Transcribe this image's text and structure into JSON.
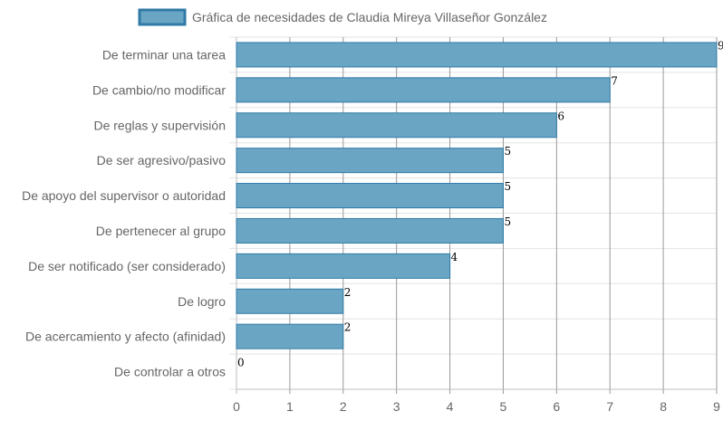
{
  "chart_data": {
    "type": "bar",
    "orientation": "horizontal",
    "categories": [
      "De terminar una tarea",
      "De cambio/no modificar",
      "De reglas y supervisión",
      "De ser agresivo/pasivo",
      "De apoyo del supervisor o autoridad",
      "De pertenecer al grupo",
      "De ser notificado (ser considerado)",
      "De logro",
      "De acercamiento y afecto (afinidad)",
      "De controlar a otros"
    ],
    "series": [
      {
        "name": "Gráfica de necesidades de Claudia Mireya Villaseñor González",
        "values": [
          9,
          7,
          6,
          5,
          5,
          5,
          4,
          2,
          2,
          0
        ]
      }
    ],
    "xlim": [
      0,
      9
    ],
    "x_ticks": [
      "0",
      "1",
      "2",
      "3",
      "4",
      "5",
      "6",
      "7",
      "8",
      "9"
    ],
    "grid": true,
    "legend_position": "top",
    "colors": {
      "bar_fill": "#6ba5c4",
      "bar_border": "#2f7aa6",
      "grid": "#e3e3e3",
      "vertical_grid": "#999999"
    }
  }
}
